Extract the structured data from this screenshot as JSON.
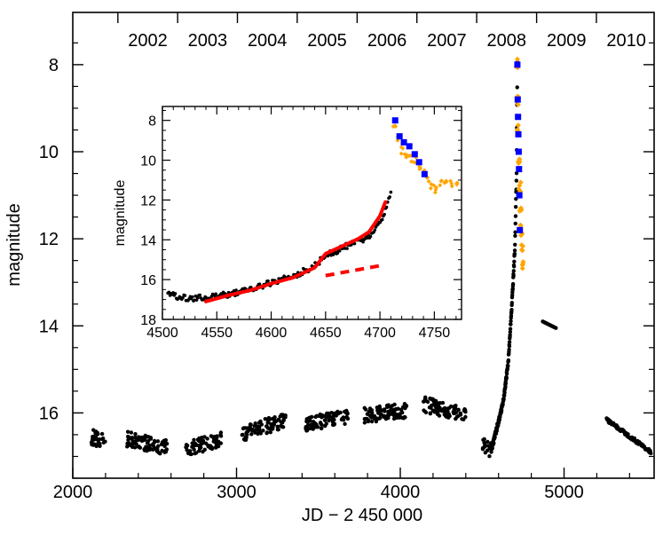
{
  "chart_data": [
    {
      "type": "scatter",
      "title": "",
      "xlabel": "JD − 2 450 000",
      "ylabel": "magnitude",
      "xlim": [
        2000,
        5550
      ],
      "ylim": [
        17.5,
        6.8
      ],
      "y_inverted": true,
      "x_ticks": [
        2000,
        3000,
        4000,
        5000
      ],
      "x_tick_labels": [
        "2000",
        "3000",
        "4000",
        "5000"
      ],
      "y_ticks": [
        8,
        10,
        12,
        14,
        16
      ],
      "y_tick_labels": [
        "8",
        "10",
        "12",
        "14",
        "16"
      ],
      "year_axis": {
        "labels": [
          "2002",
          "2003",
          "2004",
          "2005",
          "2006",
          "2007",
          "2008",
          "2009",
          "2010"
        ],
        "centers_jd": [
          2458,
          2823,
          3188,
          3553,
          3919,
          4284,
          4649,
          5015,
          5380
        ]
      },
      "series": [
        {
          "name": "observations",
          "color": "#000000",
          "segments": [
            {
              "x": [
                2110,
                2200
              ],
              "y": [
                16.55,
                16.65
              ]
            },
            {
              "x": [
                2330,
                2580
              ],
              "y": [
                16.6,
                16.8
              ]
            },
            {
              "x": [
                2690,
                2910
              ],
              "y": [
                16.82,
                16.62
              ]
            },
            {
              "x": [
                3030,
                3300
              ],
              "y": [
                16.5,
                16.15
              ]
            },
            {
              "x": [
                3420,
                3680
              ],
              "y": [
                16.25,
                16.1
              ]
            },
            {
              "x": [
                3780,
                4050
              ],
              "y": [
                16.05,
                15.95
              ]
            },
            {
              "x": [
                4140,
                4400
              ],
              "y": [
                15.8,
                16.05
              ]
            },
            {
              "x": [
                4500,
                4560
              ],
              "y": [
                16.75,
                16.85
              ]
            }
          ],
          "rise_x": [
            4560,
            4580,
            4600,
            4630,
            4660,
            4680,
            4700,
            4710,
            4715
          ],
          "rise_y": [
            16.8,
            16.5,
            16.2,
            15.7,
            14.8,
            13.6,
            12.2,
            10.5,
            8.0
          ],
          "plateau": {
            "x": [
              4870,
              4950
            ],
            "y": [
              13.9,
              14.05
            ]
          },
          "late_decline": {
            "x": [
              5260,
              5530
            ],
            "y": [
              16.15,
              16.9
            ]
          }
        },
        {
          "name": "orange points",
          "color": "#ffa500",
          "x": [
            4713,
            4718,
            4720,
            4725,
            4730,
            4735,
            4740,
            4745,
            4750
          ],
          "y": [
            8.0,
            8.8,
            9.5,
            10.2,
            10.8,
            11.3,
            11.8,
            12.2,
            12.6
          ]
        },
        {
          "name": "blue squares",
          "color": "#0000ff",
          "x": [
            4715,
            4717,
            4719,
            4721,
            4723,
            4725,
            4727,
            4730
          ],
          "y": [
            8.0,
            8.8,
            9.2,
            9.6,
            10.0,
            10.4,
            11.0,
            11.8
          ]
        }
      ]
    },
    {
      "type": "scatter",
      "title": "",
      "xlabel": "",
      "ylabel": "magnitude",
      "xlim": [
        4500,
        4775
      ],
      "ylim": [
        18,
        7.3
      ],
      "y_inverted": true,
      "x_ticks": [
        4500,
        4550,
        4600,
        4650,
        4700,
        4750
      ],
      "x_tick_labels": [
        "4500",
        "4550",
        "4600",
        "4650",
        "4700",
        "4750"
      ],
      "y_ticks": [
        8,
        10,
        12,
        14,
        16,
        18
      ],
      "y_tick_labels": [
        "8",
        "10",
        "12",
        "14",
        "16",
        "18"
      ],
      "series": [
        {
          "name": "observations",
          "color": "#000000",
          "x": [
            4505,
            4515,
            4525,
            4540,
            4560,
            4580,
            4600,
            4620,
            4640,
            4650,
            4660,
            4670,
            4680,
            4690,
            4700,
            4705,
            4710
          ],
          "y": [
            16.75,
            16.85,
            16.95,
            16.9,
            16.75,
            16.5,
            16.15,
            15.85,
            15.3,
            14.8,
            14.55,
            14.3,
            14.1,
            13.8,
            13.2,
            12.5,
            11.6
          ]
        },
        {
          "name": "model fit",
          "style": "solid",
          "color": "#ff0000",
          "x": [
            4540,
            4560,
            4580,
            4600,
            4620,
            4640,
            4650,
            4660,
            4670,
            4680,
            4690,
            4700,
            4705
          ],
          "y": [
            17.1,
            16.8,
            16.55,
            16.2,
            15.9,
            15.4,
            14.7,
            14.45,
            14.2,
            13.95,
            13.6,
            12.8,
            12.1
          ]
        },
        {
          "name": "extrapolation",
          "style": "dashed",
          "color": "#ff0000",
          "x": [
            4650,
            4675,
            4700
          ],
          "y": [
            15.8,
            15.55,
            15.3
          ]
        },
        {
          "name": "orange points",
          "color": "#ffa500",
          "x": [
            4713,
            4716,
            4720,
            4724,
            4728,
            4732,
            4736,
            4740,
            4744,
            4748,
            4752,
            4756,
            4760,
            4765,
            4770
          ],
          "y": [
            8.2,
            9.0,
            9.5,
            9.7,
            9.9,
            10.0,
            10.3,
            10.6,
            11.0,
            11.3,
            11.5,
            11.1,
            11.2,
            11.2,
            11.3
          ]
        },
        {
          "name": "blue squares",
          "color": "#0000ff",
          "x": [
            4714,
            4718,
            4722,
            4727,
            4732,
            4736,
            4741
          ],
          "y": [
            8.0,
            8.8,
            9.1,
            9.3,
            9.7,
            10.1,
            10.7
          ]
        }
      ]
    }
  ]
}
